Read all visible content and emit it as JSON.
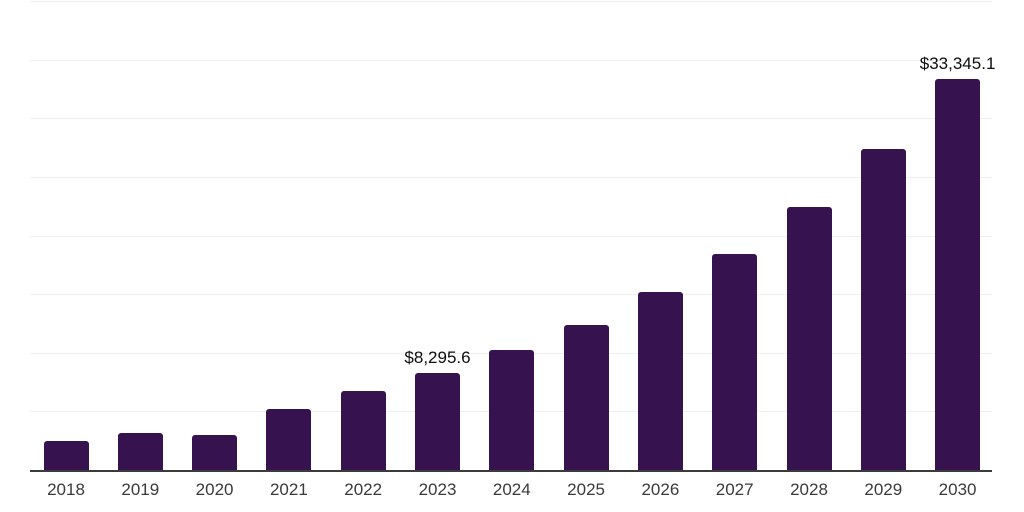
{
  "chart_data": {
    "type": "bar",
    "title": "",
    "xlabel": "",
    "ylabel": "",
    "categories": [
      "2018",
      "2019",
      "2020",
      "2021",
      "2022",
      "2023",
      "2024",
      "2025",
      "2026",
      "2027",
      "2028",
      "2029",
      "2030"
    ],
    "values": [
      2470,
      3170,
      3010,
      5180,
      6740,
      8295.6,
      10200,
      12390,
      15140,
      18400,
      22390,
      27390,
      33345.1
    ],
    "data_labels": [
      {
        "category": "2023",
        "text": "$8,295.6"
      },
      {
        "category": "2030",
        "text": "$33,345.1"
      }
    ],
    "ylim": [
      0,
      40000
    ],
    "gridline_step": 5000,
    "grid": true,
    "legend_position": "none",
    "colors": {
      "bar": "#36124e",
      "gridline": "#f0f0f0",
      "axis_line": "#3b3b3b",
      "axis_label": "#3a3a3a",
      "data_label": "#0d0d0d",
      "background": "#ffffff"
    }
  }
}
